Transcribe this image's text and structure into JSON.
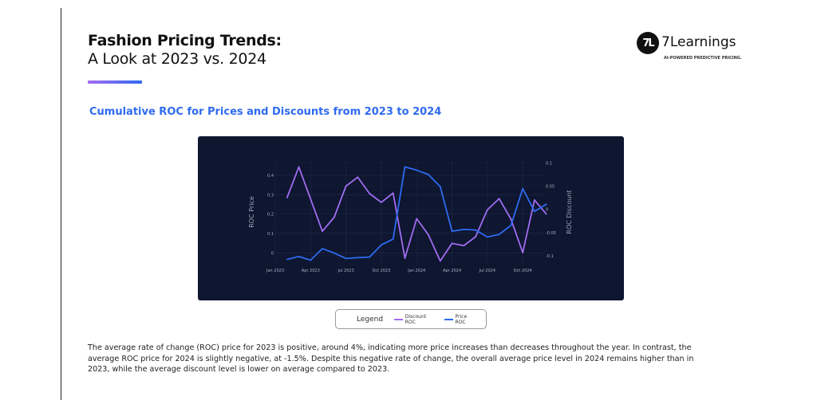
{
  "header": {
    "title_line1": "Fashion Pricing Trends:",
    "title_line2": "A Look at 2023 vs. 2024",
    "subtitle": "Cumulative ROC for Prices and Discounts from 2023 to 2024"
  },
  "logo": {
    "mark": "7L",
    "name": "7Learnings",
    "tagline": "AI-POWERED PREDICTIVE PRICING."
  },
  "legend": {
    "title": "Legend",
    "items": [
      "Discount ROC",
      "Price ROC"
    ]
  },
  "description": "The average rate of change (ROC) price for 2023 is positive, around 4%, indicating more price increases than decreases throughout the year. In contrast, the average ROC price for 2024 is slightly negative, at -1.5%. Despite this negative rate of change, the overall average price level in 2024 remains higher than in 2023, while the average discount level is lower on average compared to 2023.",
  "colors": {
    "background": "#0e1630",
    "discount": "#a06cf0",
    "price": "#2f6bf0",
    "accent": "#2f6bf0"
  },
  "chart_data": {
    "type": "line",
    "xlabel": "",
    "ylabel": "ROC Price",
    "y2label": "ROC Discount",
    "x_ticks": [
      "Jan 2023",
      "Apr 2023",
      "Jul 2023",
      "Oct 2023",
      "Jan 2024",
      "Apr 2024",
      "Jul 2024",
      "Oct 2024"
    ],
    "y_ticks": [
      "0",
      "0.1",
      "0.2",
      "0.3",
      "0.4"
    ],
    "y2_ticks": [
      "0.1",
      "0.05",
      "0",
      "-0.05",
      "-0.1"
    ],
    "grid": true,
    "legend_placement": "bottom",
    "x": [
      "2023-02",
      "2023-03",
      "2023-04",
      "2023-05",
      "2023-06",
      "2023-07",
      "2023-08",
      "2023-09",
      "2023-10",
      "2023-11",
      "2023-12",
      "2024-01",
      "2024-02",
      "2024-03",
      "2024-04",
      "2024-05",
      "2024-06",
      "2024-07",
      "2024-08",
      "2024-09",
      "2024-10",
      "2024-11",
      "2024-12"
    ],
    "series": [
      {
        "name": "Discount ROC",
        "axis": "right",
        "values": [
          0.025,
          0.091,
          0.022,
          -0.047,
          -0.017,
          0.05,
          0.069,
          0.034,
          0.015,
          0.035,
          -0.105,
          -0.02,
          -0.055,
          -0.111,
          -0.073,
          -0.078,
          -0.059,
          -0.001,
          0.023,
          -0.021,
          -0.093,
          0.02,
          -0.01
        ]
      },
      {
        "name": "Price ROC",
        "axis": "left",
        "values": [
          -0.034,
          -0.019,
          -0.038,
          0.022,
          -0.001,
          -0.029,
          -0.025,
          -0.022,
          0.041,
          0.071,
          0.444,
          0.427,
          0.404,
          0.342,
          0.112,
          0.121,
          0.118,
          0.082,
          0.095,
          0.142,
          0.332,
          0.214,
          0.251
        ]
      }
    ]
  }
}
